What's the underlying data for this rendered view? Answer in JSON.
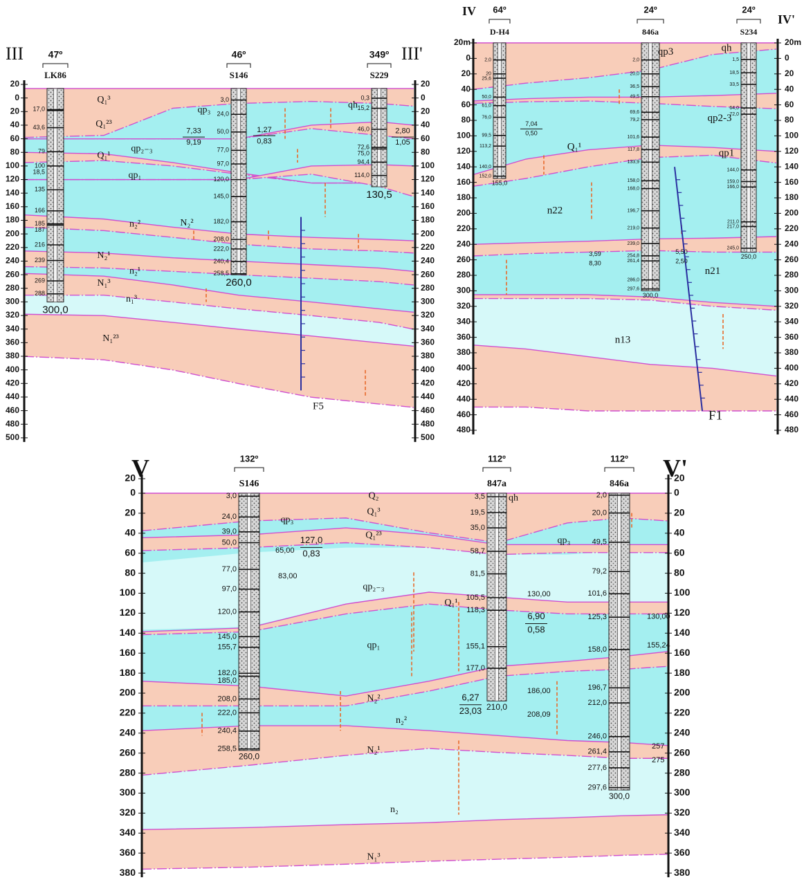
{
  "sections": [
    {
      "label_left": "III",
      "label_right": "III'",
      "depth_labels": [
        "20",
        "0",
        "20",
        "40",
        "60",
        "80",
        "100",
        "120",
        "140",
        "160",
        "180",
        "200",
        "220",
        "240",
        "260",
        "280",
        "300",
        "320",
        "340",
        "360",
        "380",
        "400",
        "420",
        "440",
        "460",
        "480",
        "500"
      ],
      "boreholes": [
        {
          "azimuth": "47º",
          "name": "LK86",
          "depths": [
            "17,0",
            "43,6",
            "79",
            "100",
            "18,5",
            "135",
            "166",
            "185",
            "187",
            "216",
            "239",
            "269",
            "288"
          ],
          "bottom": "300,0"
        },
        {
          "azimuth": "46º",
          "name": "S146",
          "depths": [
            "3,0",
            "24,0",
            "50,0",
            "77,0",
            "97,0",
            "120,0",
            "145,0",
            "182,0",
            "208,0",
            "222,0",
            "240,4",
            "258,5"
          ],
          "bottom": "260,0"
        },
        {
          "azimuth": "349º",
          "name": "S229",
          "depths": [
            "0,3",
            "15,2",
            "46,0",
            "72,6",
            "75,0",
            "94,4",
            "114,0"
          ],
          "bottom": "130,5"
        }
      ],
      "layers": [
        "Q₁³",
        "Q₁²³",
        "qp₃",
        "qh",
        "qp₂₋₃",
        "Q₁¹",
        "qp₁",
        "N₂²",
        "n₂²",
        "N₂¹",
        "n₂¹",
        "N₁³",
        "n₁³",
        "N₁²³"
      ],
      "ratios": [
        [
          "7,33",
          "9,19"
        ],
        [
          "1,27",
          "0,83"
        ],
        [
          "2,80",
          "1,05"
        ]
      ],
      "annotations": [],
      "fault": "F5"
    },
    {
      "label_left": "IV",
      "label_right": "IV'",
      "depth_labels": [
        "20m",
        "0",
        "20",
        "40",
        "60",
        "80",
        "100",
        "120",
        "140",
        "160",
        "180",
        "200",
        "220",
        "240",
        "260",
        "280",
        "300",
        "320",
        "340",
        "360",
        "380",
        "400",
        "420",
        "440",
        "460",
        "480"
      ],
      "boreholes": [
        {
          "azimuth": "64º",
          "name": "D-H4",
          "depths": [
            "2,0",
            "20",
            "25,6",
            "50,0",
            "61,0",
            "76,0",
            "99,5",
            "113,2",
            "140,0",
            "152,0"
          ],
          "bottom": "155,0"
        },
        {
          "azimuth": "24º",
          "name": "846a",
          "depths": [
            "2,0",
            "20,0",
            "36,5",
            "49,5",
            "69,6",
            "79,2",
            "101,6",
            "117,8",
            "133,9",
            "158,0",
            "168,0",
            "196,7",
            "219,0",
            "239,0",
            "254,8",
            "261,4",
            "286,0",
            "297,6"
          ],
          "bottom": "300,0"
        },
        {
          "azimuth": "24º",
          "name": "S234",
          "depths": [
            "1,5",
            "18,5",
            "33,5",
            "64,0",
            "72,0",
            "144,0",
            "159,0",
            "166,0",
            "211,0",
            "217,0",
            "245,0"
          ],
          "bottom": "250,0"
        }
      ],
      "layers": [
        "qh",
        "qp3",
        "qp2-3",
        "qp1",
        "Q₁¹",
        "n22",
        "n21",
        "n13"
      ],
      "ratios": [
        [
          "7,04",
          "0,50"
        ],
        [
          "3,59",
          "8,30"
        ],
        [
          "5,50",
          "2,50"
        ]
      ],
      "annotations": [],
      "fault": "F1"
    },
    {
      "label_left": "V",
      "label_right": "V'",
      "depth_labels": [
        "20",
        "0",
        "20",
        "40",
        "60",
        "80",
        "100",
        "120",
        "140",
        "160",
        "180",
        "200",
        "220",
        "240",
        "260",
        "280",
        "300",
        "320",
        "340",
        "360",
        "380"
      ],
      "boreholes": [
        {
          "azimuth": "132º",
          "name": "S146",
          "depths": [
            "3,0",
            "24,0",
            "39,0",
            "50,0",
            "77,0",
            "97,0",
            "120,0",
            "145,0",
            "155,7",
            "182,0",
            "185,0",
            "208,0",
            "222,0",
            "240,4",
            "258,5"
          ],
          "bottom": "260,0"
        },
        {
          "azimuth": "112º",
          "name": "847a",
          "depths": [
            "3,5",
            "19,5",
            "35,0",
            "58,7",
            "81,5",
            "105,5",
            "118,3",
            "155,1",
            "177,0"
          ],
          "bottom": "210,0"
        },
        {
          "azimuth": "112º",
          "name": "846a",
          "depths": [
            "2,0",
            "20,0",
            "49,5",
            "79,2",
            "101,6",
            "125,3",
            "158,0",
            "196,7",
            "212,0",
            "246,0",
            "261,4",
            "277,6",
            "297,6"
          ],
          "bottom": "300,0"
        }
      ],
      "layers": [
        "Q₂",
        "qh",
        "Q₁³",
        "qp₃",
        "Q₁²³",
        "qp₃",
        "qp₂₋₃",
        "Q₁¹",
        "qp₁",
        "N₂²",
        "n₂²",
        "N₂¹",
        "n₂",
        "N₁³"
      ],
      "ratios": [
        [
          "127,0",
          "0,83"
        ],
        [
          "6,90",
          "0,58"
        ],
        [
          "6,27",
          "23,03"
        ]
      ],
      "annotations": [
        "65,00",
        "83,00",
        "130,00",
        "186,00",
        "208,09",
        "130,00",
        "155,24",
        "257",
        "275"
      ]
    }
  ]
}
